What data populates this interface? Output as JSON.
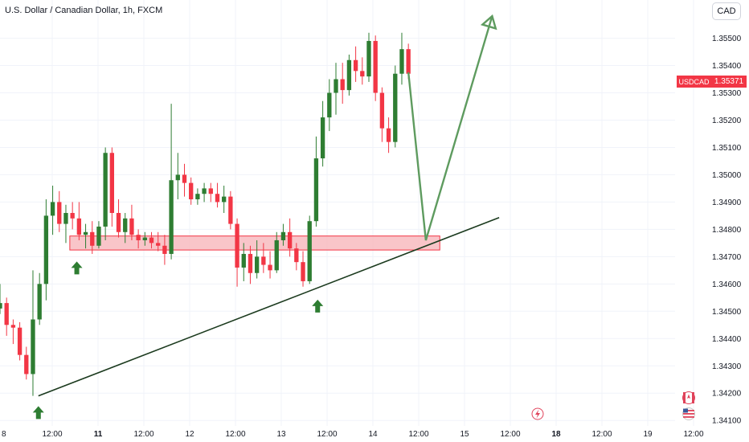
{
  "header": {
    "title": "U.S. Dollar / Canadian Dollar, 1h, FXCM",
    "currency_label": "CAD"
  },
  "price_tag": {
    "symbol": "USDCAD",
    "value": "1.35371"
  },
  "icons": {
    "lightning": "lightning-icon",
    "flag_ca": "canada-flag-icon",
    "flag_us": "us-flag-icon"
  },
  "colors": {
    "up": "#2e7d32",
    "down": "#f23645",
    "zone_fill": "#f7b6bc",
    "zone_stroke": "#f23645",
    "trendline": "#1b3a1e",
    "projection": "#5e9b5f",
    "arrow": "#2e7d32"
  },
  "chart_data": {
    "type": "candlestick",
    "title": "U.S. Dollar / Canadian Dollar, 1h, FXCM",
    "xlabel": "",
    "ylabel": "",
    "y_ticks": [
      "1.34100",
      "1.34200",
      "1.34300",
      "1.34400",
      "1.34500",
      "1.34600",
      "1.34700",
      "1.34800",
      "1.34900",
      "1.35000",
      "1.35100",
      "1.35200",
      "1.35300",
      "1.35400",
      "1.35500"
    ],
    "x_ticks": [
      "8",
      "12:00",
      "11",
      "12:00",
      "12",
      "12:00",
      "13",
      "12:00",
      "14",
      "12:00",
      "15",
      "12:00",
      "18",
      "12:00",
      "19",
      "12:00"
    ],
    "bold_x_ticks": [
      "11",
      "18"
    ],
    "ylim": [
      1.3408,
      1.3564
    ],
    "x_range": [
      0,
      96.7
    ],
    "current_price": 1.35371,
    "support_zone": {
      "x_start": 10,
      "x_end": 63,
      "y_low": 1.34742,
      "y_high": 1.34758
    },
    "trendline": {
      "x1": 5.5,
      "y1": 1.3419,
      "x2": 71.5,
      "y2": 1.34843
    },
    "projection": {
      "points": [
        [
          58.5,
          1.35375
        ],
        [
          61,
          1.3476
        ],
        [
          70.5,
          1.35581
        ]
      ]
    },
    "support_arrows": [
      {
        "x": 5.5,
        "y": 1.3417
      },
      {
        "x": 11,
        "y": 1.347
      },
      {
        "x": 45.5,
        "y": 1.3456
      }
    ],
    "candles": [
      [
        1.3451,
        1.346,
        1.3449,
        1.3453
      ],
      [
        1.3453,
        1.3455,
        1.3441,
        1.3445
      ],
      [
        1.3445,
        1.3447,
        1.3438,
        1.3444
      ],
      [
        1.3444,
        1.3446,
        1.3432,
        1.3434
      ],
      [
        1.3434,
        1.3437,
        1.3425,
        1.3427
      ],
      [
        1.3427,
        1.3465,
        1.3419,
        1.3447
      ],
      [
        1.3447,
        1.3464,
        1.3445,
        1.346
      ],
      [
        1.346,
        1.3491,
        1.3454,
        1.3485
      ],
      [
        1.3485,
        1.3496,
        1.3478,
        1.349
      ],
      [
        1.349,
        1.3494,
        1.3479,
        1.3482
      ],
      [
        1.3482,
        1.3489,
        1.3475,
        1.3486
      ],
      [
        1.3486,
        1.349,
        1.348,
        1.3484
      ],
      [
        1.3484,
        1.349,
        1.3476,
        1.3478
      ],
      [
        1.3478,
        1.3482,
        1.3473,
        1.3479
      ],
      [
        1.3479,
        1.3483,
        1.3471,
        1.3474
      ],
      [
        1.3474,
        1.3483,
        1.3473,
        1.3481
      ],
      [
        1.3481,
        1.351,
        1.3476,
        1.3508
      ],
      [
        1.3508,
        1.351,
        1.3481,
        1.3486
      ],
      [
        1.3486,
        1.3491,
        1.3477,
        1.3479
      ],
      [
        1.3479,
        1.3486,
        1.3475,
        1.3484
      ],
      [
        1.3484,
        1.3489,
        1.3476,
        1.3478
      ],
      [
        1.3478,
        1.348,
        1.3473,
        1.3476
      ],
      [
        1.3476,
        1.3479,
        1.3474,
        1.3477
      ],
      [
        1.3477,
        1.3479,
        1.3473,
        1.3475
      ],
      [
        1.3475,
        1.3479,
        1.3472,
        1.3474
      ],
      [
        1.3474,
        1.3478,
        1.3467,
        1.3471
      ],
      [
        1.3471,
        1.3526,
        1.3469,
        1.3498
      ],
      [
        1.3498,
        1.3508,
        1.3491,
        1.35
      ],
      [
        1.35,
        1.3504,
        1.3492,
        1.3497
      ],
      [
        1.3497,
        1.3499,
        1.3489,
        1.3491
      ],
      [
        1.3491,
        1.3495,
        1.3489,
        1.3493
      ],
      [
        1.3493,
        1.3497,
        1.349,
        1.3495
      ],
      [
        1.3495,
        1.3497,
        1.349,
        1.3493
      ],
      [
        1.3493,
        1.3497,
        1.3488,
        1.349
      ],
      [
        1.349,
        1.3496,
        1.3486,
        1.3492
      ],
      [
        1.3492,
        1.3494,
        1.348,
        1.3482
      ],
      [
        1.3482,
        1.3484,
        1.3459,
        1.3466
      ],
      [
        1.3466,
        1.3475,
        1.3461,
        1.3471
      ],
      [
        1.3471,
        1.3474,
        1.346,
        1.3464
      ],
      [
        1.3464,
        1.3476,
        1.3462,
        1.347
      ],
      [
        1.347,
        1.3475,
        1.3464,
        1.3467
      ],
      [
        1.3467,
        1.3472,
        1.3462,
        1.3465
      ],
      [
        1.3465,
        1.3479,
        1.3464,
        1.3476
      ],
      [
        1.3476,
        1.3482,
        1.3474,
        1.3479
      ],
      [
        1.3479,
        1.3484,
        1.347,
        1.3473
      ],
      [
        1.3473,
        1.3475,
        1.3465,
        1.3468
      ],
      [
        1.3468,
        1.3472,
        1.3459,
        1.3461
      ],
      [
        1.3461,
        1.3485,
        1.346,
        1.3483
      ],
      [
        1.3483,
        1.3514,
        1.3481,
        1.3506
      ],
      [
        1.3506,
        1.3527,
        1.3503,
        1.3521
      ],
      [
        1.3521,
        1.3535,
        1.3516,
        1.353
      ],
      [
        1.353,
        1.3541,
        1.3522,
        1.3535
      ],
      [
        1.3535,
        1.3541,
        1.3526,
        1.3531
      ],
      [
        1.3531,
        1.3544,
        1.3529,
        1.3542
      ],
      [
        1.3542,
        1.3547,
        1.3534,
        1.3538
      ],
      [
        1.3538,
        1.3543,
        1.3533,
        1.3536
      ],
      [
        1.3536,
        1.3552,
        1.3534,
        1.3549
      ],
      [
        1.3549,
        1.3551,
        1.3527,
        1.353
      ],
      [
        1.353,
        1.3532,
        1.3512,
        1.3517
      ],
      [
        1.3517,
        1.3521,
        1.3508,
        1.3512
      ],
      [
        1.3512,
        1.354,
        1.351,
        1.3537
      ],
      [
        1.3537,
        1.3552,
        1.3533,
        1.3546
      ],
      [
        1.3546,
        1.3548,
        1.3535,
        1.3537
      ]
    ]
  }
}
